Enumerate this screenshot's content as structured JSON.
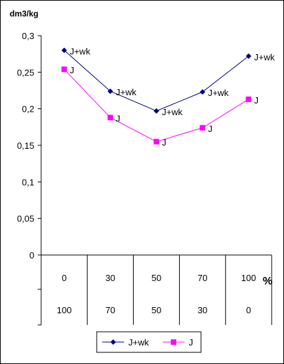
{
  "chart_data": {
    "type": "line",
    "ylabel": "dm3/kg",
    "xlabel": "%",
    "ylim": [
      0,
      0.3
    ],
    "yticks": [
      "0",
      "0,05",
      "0,1",
      "0,15",
      "0,2",
      "0,25",
      "0,3"
    ],
    "ytick_values": [
      0,
      0.05,
      0.1,
      0.15,
      0.2,
      0.25,
      0.3
    ],
    "categories_row1": [
      "0",
      "30",
      "50",
      "70",
      "100"
    ],
    "categories_row2": [
      "100",
      "70",
      "50",
      "30",
      "0"
    ],
    "grid": false,
    "legend_position": "bottom",
    "series": [
      {
        "name": "J+wk",
        "color": "#000080",
        "marker": "diamond",
        "values": [
          0.28,
          0.224,
          0.197,
          0.223,
          0.272
        ],
        "labels": [
          "J+wk",
          "J+wk",
          "J+wk",
          "J+wk",
          "J+wk"
        ]
      },
      {
        "name": "J",
        "color": "#ff00ff",
        "marker": "square",
        "values": [
          0.254,
          0.188,
          0.155,
          0.174,
          0.213
        ],
        "labels": [
          "J",
          "J",
          "J",
          "J",
          "J"
        ]
      }
    ]
  }
}
